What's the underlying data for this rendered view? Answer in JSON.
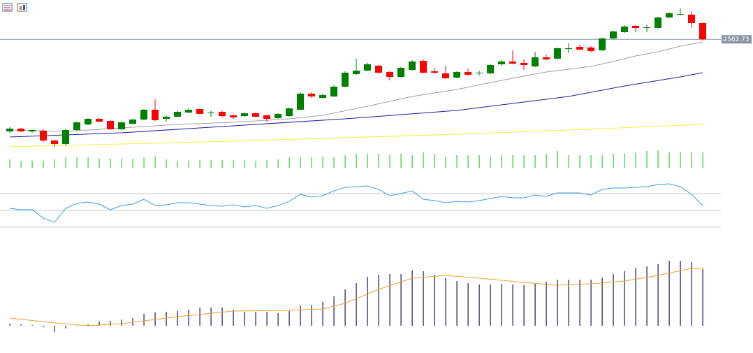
{
  "chart_data": [
    {
      "type": "candlestick",
      "open": [
        2431,
        2435,
        2431,
        2432,
        2418,
        2413,
        2433,
        2441,
        2449,
        2446,
        2434,
        2442,
        2448,
        2462,
        2449,
        2452,
        2458,
        2463,
        2457,
        2459,
        2454,
        2453,
        2457,
        2454,
        2450,
        2453,
        2462,
        2485,
        2479,
        2481,
        2495,
        2513,
        2518,
        2525,
        2516,
        2509,
        2519,
        2532,
        2517,
        2514,
        2508,
        2516,
        2514,
        2514,
        2527,
        2531,
        2529,
        2524,
        2537,
        2535,
        2549,
        2552,
        2551,
        2547,
        2564,
        2573,
        2582,
        2579,
        2579,
        2594,
        2598,
        2598,
        2586
      ],
      "high": [
        2437,
        2436,
        2434,
        2434,
        2419,
        2435,
        2445,
        2450,
        2450,
        2447,
        2445,
        2449,
        2463,
        2477,
        2454,
        2461,
        2464,
        2464,
        2461,
        2461,
        2455,
        2458,
        2458,
        2455,
        2457,
        2465,
        2487,
        2487,
        2485,
        2497,
        2517,
        2535,
        2529,
        2526,
        2517,
        2523,
        2533,
        2534,
        2522,
        2525,
        2517,
        2521,
        2518,
        2527,
        2533,
        2547,
        2534,
        2545,
        2541,
        2551,
        2557,
        2555,
        2553,
        2565,
        2575,
        2583,
        2583,
        2583,
        2595,
        2602,
        2607,
        2603,
        2587
      ],
      "low": [
        2429,
        2430,
        2429,
        2416,
        2409,
        2411,
        2432,
        2440,
        2444,
        2433,
        2433,
        2441,
        2447,
        2446,
        2445,
        2451,
        2457,
        2455,
        2452,
        2451,
        2449,
        2452,
        2451,
        2445,
        2449,
        2452,
        2461,
        2479,
        2478,
        2480,
        2494,
        2512,
        2517,
        2514,
        2504,
        2508,
        2518,
        2514,
        2513,
        2506,
        2507,
        2511,
        2511,
        2513,
        2525,
        2527,
        2519,
        2523,
        2533,
        2534,
        2543,
        2547,
        2544,
        2546,
        2563,
        2572,
        2573,
        2573,
        2578,
        2593,
        2597,
        2579,
        2561
      ],
      "close": [
        2435,
        2431,
        2433,
        2418,
        2413,
        2433,
        2444,
        2449,
        2445,
        2434,
        2444,
        2448,
        2462,
        2447,
        2452,
        2459,
        2462,
        2456,
        2458,
        2453,
        2451,
        2457,
        2452,
        2449,
        2456,
        2464,
        2485,
        2481,
        2483,
        2495,
        2515,
        2518,
        2527,
        2515,
        2509,
        2522,
        2531,
        2515,
        2515,
        2507,
        2516,
        2512,
        2515,
        2526,
        2531,
        2528,
        2526,
        2537,
        2534,
        2550,
        2550,
        2548,
        2546,
        2564,
        2574,
        2581,
        2579,
        2580,
        2594,
        2600,
        2599,
        2586,
        2562.73
      ],
      "up_color": "#008000",
      "down_color": "#ff0000",
      "price_line_color": "#8a96a6",
      "ylim": [
        2400,
        2615
      ],
      "overlays": [
        {
          "color": "#a0a0a0",
          "x": [
            0,
            5,
            10,
            15,
            20,
            25,
            28,
            32,
            36,
            40,
            44,
            48,
            52,
            54,
            56,
            58,
            60,
            62
          ],
          "values": [
            2433,
            2431,
            2436,
            2441,
            2444,
            2449,
            2454,
            2467,
            2481,
            2491,
            2504,
            2516,
            2524,
            2531,
            2539,
            2545,
            2553,
            2559
          ]
        },
        {
          "color": "#1c1c9c",
          "x": [
            0,
            10,
            20,
            30,
            40,
            50,
            55,
            60,
            62
          ],
          "values": [
            2423,
            2429,
            2439,
            2449,
            2461,
            2481,
            2496,
            2509,
            2515
          ]
        },
        {
          "color": "#f0f040",
          "x": [
            0,
            20,
            40,
            50,
            62
          ],
          "values": [
            2409,
            2417,
            2427,
            2433,
            2441
          ]
        }
      ]
    },
    {
      "type": "bar",
      "color": "#32cd32",
      "ylim": [
        0,
        30
      ],
      "values": [
        12,
        10,
        10,
        10,
        12,
        15,
        15,
        15,
        13,
        13,
        13,
        13,
        15,
        16,
        12,
        10,
        10,
        11,
        11,
        11,
        11,
        11,
        10,
        11,
        12,
        15,
        15,
        15,
        16,
        15,
        18,
        20,
        20,
        20,
        18,
        20,
        18,
        22,
        20,
        16,
        18,
        18,
        18,
        16,
        18,
        18,
        18,
        18,
        20,
        24,
        18,
        18,
        18,
        18,
        20,
        20,
        22,
        24,
        25,
        22,
        22,
        22,
        22
      ]
    },
    {
      "type": "line",
      "color": "#3b9ee0",
      "ylim": [
        20,
        80
      ],
      "levels": [
        70,
        50,
        30
      ],
      "level_color": "#c8c8c8",
      "values": [
        52.5,
        50.8,
        50.8,
        40.8,
        35.8,
        52.5,
        58.3,
        60,
        57.5,
        50.8,
        55.8,
        57.5,
        63.3,
        55.8,
        56.7,
        59.2,
        59.2,
        57.5,
        55.8,
        55,
        56.7,
        54.2,
        55.8,
        52.5,
        55.8,
        60.8,
        69.2,
        65.8,
        67.5,
        73.3,
        77.5,
        78.3,
        79.2,
        75,
        67.5,
        70,
        73.3,
        63.3,
        61.7,
        59.2,
        60.8,
        60,
        61.7,
        64.2,
        66.7,
        65,
        65,
        68.3,
        66.7,
        70.8,
        70.8,
        70.8,
        68.3,
        75,
        76.7,
        76.7,
        77.5,
        78.3,
        80.8,
        81.7,
        78.3,
        69.2,
        55.8
      ]
    },
    {
      "type": "bar",
      "color": "#1a1a5e",
      "ylim": [
        -10,
        100
      ],
      "values": [
        3,
        2,
        1,
        -2,
        -9,
        -4,
        -1,
        2,
        6,
        7,
        9,
        11,
        17,
        19,
        20,
        21,
        23,
        26,
        26,
        26,
        23,
        20,
        20,
        20,
        18,
        21,
        29,
        30,
        34,
        42,
        52,
        61,
        70,
        73,
        74,
        74,
        79,
        78,
        73,
        68,
        64,
        61,
        59,
        59,
        60,
        59,
        58,
        60,
        63,
        66,
        66,
        66,
        66,
        69,
        74,
        78,
        83,
        85,
        88,
        93,
        93,
        91,
        81
      ],
      "signal": {
        "color": "#f0a030",
        "x": [
          0,
          4,
          7,
          10,
          15,
          20,
          25,
          28,
          30,
          33,
          36,
          39,
          42,
          46,
          49,
          52,
          55,
          58,
          61,
          62
        ],
        "values": [
          11,
          4,
          0,
          3,
          13,
          21,
          22,
          24,
          32,
          52,
          68,
          72,
          68,
          62,
          58,
          60,
          64,
          72,
          82,
          82
        ]
      }
    }
  ]
}
